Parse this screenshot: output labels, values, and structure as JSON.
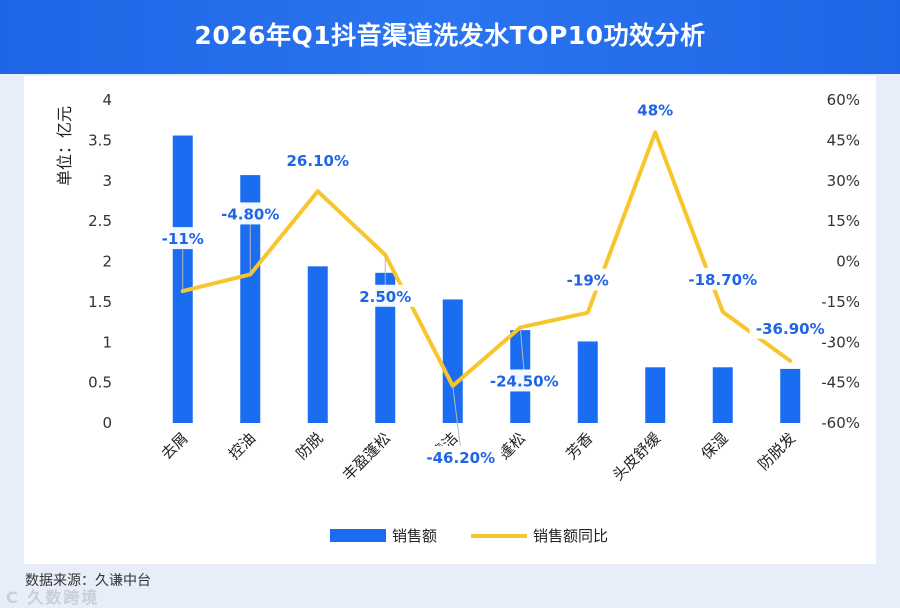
{
  "header": {
    "title": "2026年Q1抖音渠道洗发水TOP10功效分析"
  },
  "footer": {
    "source": "数据来源：久谦中台",
    "watermark": "C 久数跨境"
  },
  "colors": {
    "bar": "#1a6cf0",
    "line": "#f6c62c",
    "label": "#1f66e6",
    "header": "#2a74f0"
  },
  "chart_data": {
    "type": "bar",
    "categories": [
      "去屑",
      "控油",
      "防脱",
      "丰盈蓬松",
      "清洁",
      "蓬松",
      "芳香",
      "头皮舒缓",
      "保湿",
      "防脱发"
    ],
    "ylabel": "单位：亿元",
    "ylim": [
      0,
      4
    ],
    "y_ticks": [
      "0",
      "0.5",
      "1",
      "1.5",
      "2",
      "2.5",
      "3",
      "3.5",
      "4"
    ],
    "y2lim": [
      -60,
      60
    ],
    "y2_ticks": [
      "-60%",
      "-45%",
      "-30%",
      "-15%",
      "0%",
      "15%",
      "30%",
      "45%",
      "60%"
    ],
    "grid": false,
    "legend_position": "bottom",
    "series": [
      {
        "name": "销售额",
        "type": "bar",
        "axis": "left",
        "values": [
          3.56,
          3.07,
          1.94,
          1.86,
          1.53,
          1.15,
          1.01,
          0.69,
          0.69,
          0.67
        ]
      },
      {
        "name": "销售额同比",
        "type": "line",
        "axis": "right",
        "values": [
          -11,
          -4.8,
          26.1,
          2.5,
          -46.2,
          -24.5,
          -19,
          48,
          -18.7,
          -36.9
        ],
        "labels": [
          "-11%",
          "-4.80%",
          "26.10%",
          "2.50%",
          "-46.20%",
          "-24.50%",
          "-19%",
          "48%",
          "-18.70%",
          "-36.90%"
        ]
      }
    ]
  }
}
